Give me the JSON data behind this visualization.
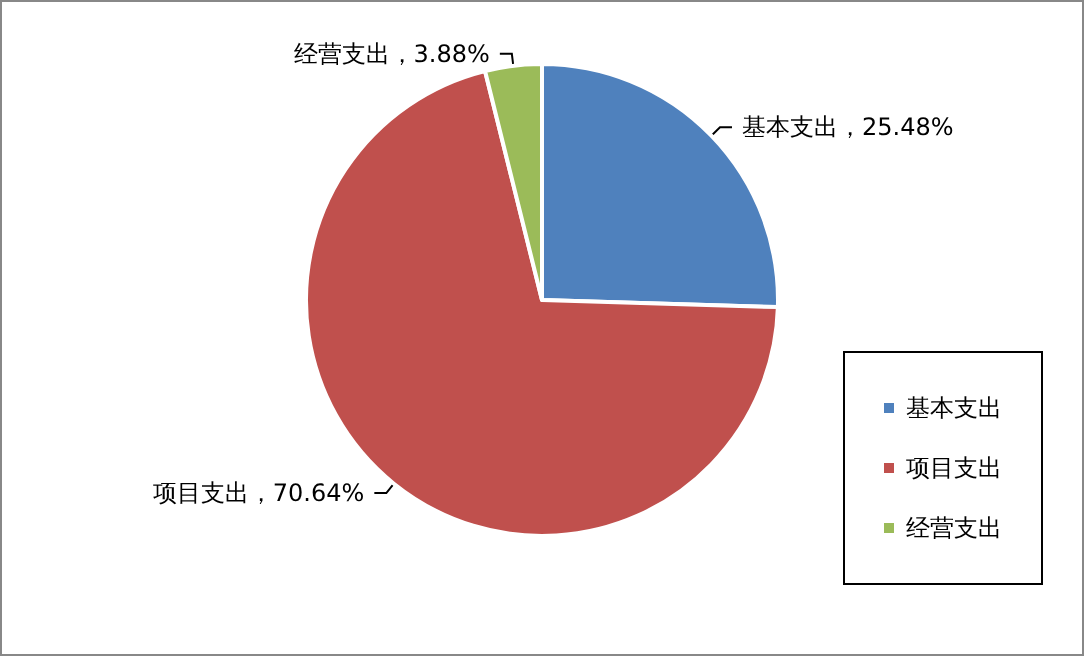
{
  "chart_data": {
    "type": "pie",
    "categories": [
      "基本支出",
      "项目支出",
      "经营支出"
    ],
    "values": [
      25.48,
      70.64,
      3.88
    ],
    "colors": [
      "#4f81bd",
      "#c0504d",
      "#9bbb59"
    ],
    "value_labels": [
      "，25.48%",
      "，70.64%",
      "，3.88%"
    ],
    "legend": "right"
  }
}
